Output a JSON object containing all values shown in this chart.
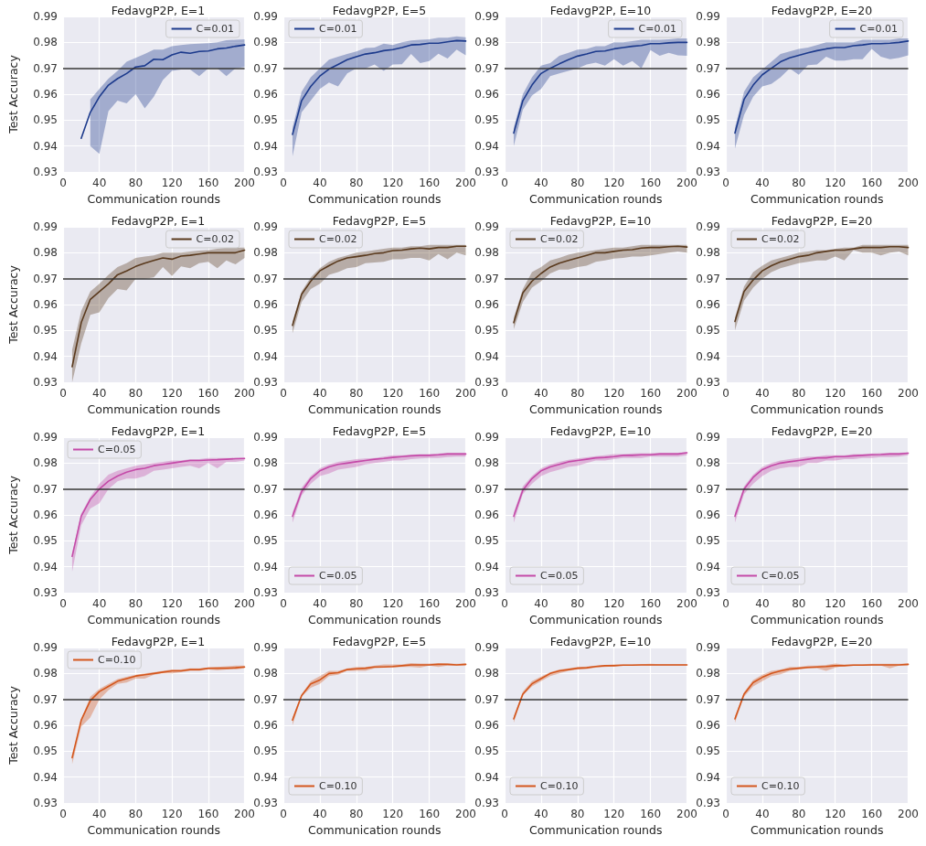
{
  "chart_data": [
    {
      "type": "line",
      "title": "FedavgP2P, E=1",
      "xlabel": "Communication rounds",
      "ylabel": "Test Accuracy",
      "legend": "top right",
      "grid": true,
      "xlim": [
        0,
        200
      ],
      "xticks": [
        0,
        40,
        80,
        120,
        160,
        200
      ],
      "ylim": [
        0.93,
        0.99
      ],
      "yticks": [
        0.93,
        0.94,
        0.95,
        0.96,
        0.97,
        0.98,
        0.99
      ],
      "ref_lines": [
        {
          "axis": "y",
          "value": 0.97,
          "color": "#333333"
        }
      ],
      "series": [
        {
          "name": "C=0.01",
          "color": "#1c3a8c",
          "x": [
            20,
            30,
            40,
            50,
            60,
            70,
            80,
            90,
            100,
            110,
            120,
            130,
            140,
            150,
            160,
            170,
            180,
            190,
            200
          ],
          "values": [
            0.943,
            0.953,
            0.959,
            0.9635,
            0.966,
            0.968,
            0.9705,
            0.971,
            0.9735,
            0.9733,
            0.9752,
            0.9762,
            0.9758,
            0.9765,
            0.9767,
            0.9775,
            0.9778,
            0.9785,
            0.979
          ],
          "upper": [
            null,
            0.958,
            0.962,
            0.966,
            0.969,
            0.9725,
            0.974,
            0.9755,
            0.9772,
            0.9772,
            0.9785,
            0.979,
            0.9793,
            0.9795,
            0.9797,
            0.98,
            0.9808,
            0.981,
            0.9812
          ],
          "lower": [
            null,
            0.94,
            0.937,
            0.9535,
            0.9575,
            0.9565,
            0.96,
            0.9545,
            0.959,
            0.9655,
            0.969,
            0.9695,
            0.9695,
            0.967,
            0.97,
            0.97,
            0.967,
            0.97,
            0.9705
          ]
        }
      ]
    },
    {
      "type": "line",
      "title": "FedavgP2P, E=5",
      "xlabel": "Communication rounds",
      "legend": "top left",
      "grid": true,
      "xlim": [
        0,
        200
      ],
      "xticks": [
        0,
        40,
        80,
        120,
        160,
        200
      ],
      "ylim": [
        0.93,
        0.99
      ],
      "yticks": [
        0.93,
        0.94,
        0.95,
        0.96,
        0.97,
        0.98,
        0.99
      ],
      "ref_lines": [
        {
          "axis": "y",
          "value": 0.97,
          "color": "#333333"
        }
      ],
      "x": [
        10,
        20,
        30,
        40,
        50,
        60,
        70,
        80,
        90,
        100,
        110,
        120,
        130,
        140,
        150,
        160,
        170,
        180,
        190,
        200
      ],
      "series": [
        {
          "name": "C=0.01",
          "color": "#1c3a8c",
          "values": [
            0.9445,
            0.9575,
            0.963,
            0.967,
            0.9697,
            0.9715,
            0.9733,
            0.9745,
            0.9755,
            0.976,
            0.9768,
            0.9772,
            0.978,
            0.979,
            0.9792,
            0.9797,
            0.9797,
            0.9802,
            0.9807,
            0.9805
          ],
          "upper": [
            0.947,
            0.961,
            0.9665,
            0.97,
            0.9733,
            0.9745,
            0.9755,
            0.9765,
            0.9778,
            0.978,
            0.9795,
            0.979,
            0.98,
            0.9807,
            0.981,
            0.9812,
            0.9818,
            0.9818,
            0.9823,
            0.982
          ],
          "lower": [
            0.936,
            0.953,
            0.9575,
            0.962,
            0.9645,
            0.963,
            0.968,
            0.97,
            0.97,
            0.9715,
            0.969,
            0.9715,
            0.9716,
            0.9755,
            0.972,
            0.9728,
            0.9756,
            0.9738,
            0.9772,
            0.975
          ]
        }
      ]
    },
    {
      "type": "line",
      "title": "FedavgP2P, E=10",
      "xlabel": "Communication rounds",
      "legend": "top right",
      "grid": true,
      "xlim": [
        0,
        200
      ],
      "xticks": [
        0,
        40,
        80,
        120,
        160,
        200
      ],
      "ylim": [
        0.93,
        0.99
      ],
      "yticks": [
        0.93,
        0.94,
        0.95,
        0.96,
        0.97,
        0.98,
        0.99
      ],
      "ref_lines": [
        {
          "axis": "y",
          "value": 0.97,
          "color": "#333333"
        }
      ],
      "x": [
        10,
        20,
        30,
        40,
        50,
        60,
        70,
        80,
        90,
        100,
        110,
        120,
        130,
        140,
        150,
        160,
        170,
        180,
        190,
        200
      ],
      "series": [
        {
          "name": "C=0.01",
          "color": "#1c3a8c",
          "values": [
            0.945,
            0.9575,
            0.9635,
            0.968,
            0.97,
            0.9717,
            0.9733,
            0.9747,
            0.9755,
            0.9765,
            0.9767,
            0.9775,
            0.978,
            0.9785,
            0.9788,
            0.9795,
            0.9795,
            0.9798,
            0.98,
            0.98
          ],
          "upper": [
            0.947,
            0.96,
            0.9665,
            0.971,
            0.972,
            0.9748,
            0.976,
            0.9772,
            0.9775,
            0.9785,
            0.9785,
            0.98,
            0.98,
            0.9805,
            0.981,
            0.981,
            0.981,
            0.9812,
            0.9815,
            0.9815
          ],
          "lower": [
            0.94,
            0.954,
            0.9595,
            0.962,
            0.967,
            0.968,
            0.969,
            0.97,
            0.9715,
            0.9722,
            0.971,
            0.9735,
            0.971,
            0.9728,
            0.97,
            0.977,
            0.9748,
            0.976,
            0.975,
            0.9748
          ]
        }
      ]
    },
    {
      "type": "line",
      "title": "FedavgP2P, E=20",
      "xlabel": "Communication rounds",
      "legend": "top right",
      "grid": true,
      "xlim": [
        0,
        200
      ],
      "xticks": [
        0,
        40,
        80,
        120,
        160,
        200
      ],
      "ylim": [
        0.93,
        0.99
      ],
      "yticks": [
        0.93,
        0.94,
        0.95,
        0.96,
        0.97,
        0.98,
        0.99
      ],
      "ref_lines": [
        {
          "axis": "y",
          "value": 0.97,
          "color": "#333333"
        }
      ],
      "x": [
        10,
        20,
        30,
        40,
        50,
        60,
        70,
        80,
        90,
        100,
        110,
        120,
        130,
        140,
        150,
        160,
        170,
        180,
        190,
        200
      ],
      "series": [
        {
          "name": "C=0.01",
          "color": "#1c3a8c",
          "values": [
            0.945,
            0.958,
            0.9635,
            0.9675,
            0.97,
            0.9725,
            0.974,
            0.975,
            0.976,
            0.9768,
            0.9775,
            0.978,
            0.978,
            0.9787,
            0.979,
            0.9795,
            0.9795,
            0.9797,
            0.98,
            0.9805
          ],
          "upper": [
            0.947,
            0.961,
            0.9665,
            0.9695,
            0.9725,
            0.9755,
            0.9765,
            0.9775,
            0.978,
            0.979,
            0.98,
            0.98,
            0.98,
            0.98,
            0.981,
            0.981,
            0.981,
            0.981,
            0.9815,
            0.9815
          ],
          "lower": [
            0.939,
            0.952,
            0.959,
            0.963,
            0.964,
            0.9665,
            0.97,
            0.9675,
            0.9712,
            0.9715,
            0.9745,
            0.973,
            0.973,
            0.9735,
            0.9735,
            0.9775,
            0.9745,
            0.9735,
            0.974,
            0.975
          ]
        }
      ]
    },
    {
      "type": "line",
      "title": "FedavgP2P, E=1",
      "xlabel": "Communication rounds",
      "ylabel": "Test Accuracy",
      "legend": "top right",
      "grid": true,
      "xlim": [
        0,
        200
      ],
      "xticks": [
        0,
        40,
        80,
        120,
        160,
        200
      ],
      "ylim": [
        0.93,
        0.99
      ],
      "yticks": [
        0.93,
        0.94,
        0.95,
        0.96,
        0.97,
        0.98,
        0.99
      ],
      "ref_lines": [
        {
          "axis": "y",
          "value": 0.97,
          "color": "#333333"
        }
      ],
      "x": [
        10,
        20,
        30,
        40,
        50,
        60,
        70,
        80,
        90,
        100,
        110,
        120,
        130,
        140,
        150,
        160,
        170,
        180,
        190,
        200
      ],
      "series": [
        {
          "name": "C=0.02",
          "color": "#5a3a1e",
          "values": [
            0.936,
            0.953,
            0.962,
            0.965,
            0.968,
            0.9715,
            0.973,
            0.9747,
            0.976,
            0.977,
            0.978,
            0.9775,
            0.9787,
            0.979,
            0.9795,
            0.98,
            0.98,
            0.98,
            0.98,
            0.981
          ],
          "upper": [
            0.9425,
            0.9575,
            0.965,
            0.968,
            0.9715,
            0.9745,
            0.976,
            0.978,
            0.9785,
            0.979,
            0.98,
            0.98,
            0.98,
            0.9805,
            0.9808,
            0.981,
            0.9815,
            0.982,
            0.982,
            0.982
          ],
          "lower": [
            0.93,
            0.945,
            0.956,
            0.957,
            0.9625,
            0.966,
            0.9655,
            0.97,
            0.97,
            0.9705,
            0.9745,
            0.971,
            0.9747,
            0.974,
            0.976,
            0.9765,
            0.974,
            0.977,
            0.9755,
            0.978
          ]
        }
      ]
    },
    {
      "type": "line",
      "title": "FedavgP2P, E=5",
      "xlabel": "Communication rounds",
      "legend": "top left",
      "grid": true,
      "xlim": [
        0,
        200
      ],
      "xticks": [
        0,
        40,
        80,
        120,
        160,
        200
      ],
      "ylim": [
        0.93,
        0.99
      ],
      "yticks": [
        0.93,
        0.94,
        0.95,
        0.96,
        0.97,
        0.98,
        0.99
      ],
      "ref_lines": [
        {
          "axis": "y",
          "value": 0.97,
          "color": "#333333"
        }
      ],
      "x": [
        10,
        20,
        30,
        40,
        50,
        60,
        70,
        80,
        90,
        100,
        110,
        120,
        130,
        140,
        150,
        160,
        170,
        180,
        190,
        200
      ],
      "series": [
        {
          "name": "C=0.02",
          "color": "#5a3a1e",
          "values": [
            0.952,
            0.964,
            0.969,
            0.973,
            0.975,
            0.9768,
            0.978,
            0.9785,
            0.979,
            0.9797,
            0.98,
            0.9808,
            0.981,
            0.9815,
            0.9818,
            0.9815,
            0.982,
            0.982,
            0.9825,
            0.9825
          ],
          "upper": [
            0.9535,
            0.965,
            0.9705,
            0.974,
            0.9765,
            0.978,
            0.979,
            0.98,
            0.9805,
            0.981,
            0.9815,
            0.982,
            0.982,
            0.9825,
            0.9825,
            0.983,
            0.983,
            0.983,
            0.983,
            0.983
          ],
          "lower": [
            0.949,
            0.961,
            0.966,
            0.968,
            0.9715,
            0.9725,
            0.974,
            0.9745,
            0.976,
            0.9762,
            0.9765,
            0.9775,
            0.9775,
            0.978,
            0.978,
            0.977,
            0.9795,
            0.9775,
            0.98,
            0.979
          ]
        }
      ]
    },
    {
      "type": "line",
      "title": "FedavgP2P, E=10",
      "xlabel": "Communication rounds",
      "legend": "top left",
      "grid": true,
      "xlim": [
        0,
        200
      ],
      "xticks": [
        0,
        40,
        80,
        120,
        160,
        200
      ],
      "ylim": [
        0.93,
        0.99
      ],
      "yticks": [
        0.93,
        0.94,
        0.95,
        0.96,
        0.97,
        0.98,
        0.99
      ],
      "ref_lines": [
        {
          "axis": "y",
          "value": 0.97,
          "color": "#333333"
        }
      ],
      "x": [
        10,
        20,
        30,
        40,
        50,
        60,
        70,
        80,
        90,
        100,
        110,
        120,
        130,
        140,
        150,
        160,
        170,
        180,
        190,
        200
      ],
      "series": [
        {
          "name": "C=0.02",
          "color": "#5a3a1e",
          "values": [
            0.953,
            0.9645,
            0.969,
            0.972,
            0.9745,
            0.976,
            0.977,
            0.978,
            0.979,
            0.98,
            0.98,
            0.9805,
            0.981,
            0.9812,
            0.9818,
            0.982,
            0.982,
            0.9823,
            0.9825,
            0.9822
          ],
          "upper": [
            0.955,
            0.966,
            0.9725,
            0.9745,
            0.977,
            0.978,
            0.9792,
            0.98,
            0.9805,
            0.981,
            0.9815,
            0.982,
            0.982,
            0.9825,
            0.983,
            0.983,
            0.983,
            0.983,
            0.983,
            0.983
          ],
          "lower": [
            0.9505,
            0.961,
            0.9665,
            0.969,
            0.972,
            0.9735,
            0.9735,
            0.9745,
            0.975,
            0.9765,
            0.977,
            0.9777,
            0.978,
            0.9785,
            0.9785,
            0.979,
            0.9795,
            0.98,
            0.9805,
            0.98
          ]
        }
      ]
    },
    {
      "type": "line",
      "title": "FedavgP2P, E=20",
      "xlabel": "Communication rounds",
      "legend": "top left",
      "grid": true,
      "xlim": [
        0,
        200
      ],
      "xticks": [
        0,
        40,
        80,
        120,
        160,
        200
      ],
      "ylim": [
        0.93,
        0.99
      ],
      "yticks": [
        0.93,
        0.94,
        0.95,
        0.96,
        0.97,
        0.98,
        0.99
      ],
      "ref_lines": [
        {
          "axis": "y",
          "value": 0.97,
          "color": "#333333"
        }
      ],
      "x": [
        10,
        20,
        30,
        40,
        50,
        60,
        70,
        80,
        90,
        100,
        110,
        120,
        130,
        140,
        150,
        160,
        170,
        180,
        190,
        200
      ],
      "series": [
        {
          "name": "C=0.02",
          "color": "#5a3a1e",
          "values": [
            0.9535,
            0.965,
            0.9695,
            0.973,
            0.975,
            0.9765,
            0.9775,
            0.9785,
            0.979,
            0.98,
            0.9805,
            0.981,
            0.981,
            0.9815,
            0.982,
            0.982,
            0.982,
            0.9823,
            0.9823,
            0.982
          ],
          "upper": [
            0.955,
            0.967,
            0.9725,
            0.975,
            0.977,
            0.978,
            0.979,
            0.98,
            0.9805,
            0.981,
            0.981,
            0.9815,
            0.982,
            0.982,
            0.983,
            0.983,
            0.983,
            0.983,
            0.983,
            0.983
          ],
          "lower": [
            0.95,
            0.9615,
            0.9665,
            0.97,
            0.9725,
            0.974,
            0.975,
            0.976,
            0.9765,
            0.977,
            0.977,
            0.9785,
            0.977,
            0.981,
            0.98,
            0.98,
            0.979,
            0.98,
            0.9805,
            0.979
          ]
        }
      ]
    },
    {
      "type": "line",
      "title": "FedavgP2P, E=1",
      "xlabel": "Communication rounds",
      "ylabel": "Test Accuracy",
      "legend": "top left",
      "grid": true,
      "xlim": [
        0,
        200
      ],
      "xticks": [
        0,
        40,
        80,
        120,
        160,
        200
      ],
      "ylim": [
        0.93,
        0.99
      ],
      "yticks": [
        0.93,
        0.94,
        0.95,
        0.96,
        0.97,
        0.98,
        0.99
      ],
      "ref_lines": [
        {
          "axis": "y",
          "value": 0.97,
          "color": "#333333"
        }
      ],
      "x": [
        10,
        20,
        30,
        40,
        50,
        60,
        70,
        80,
        90,
        100,
        110,
        120,
        130,
        140,
        150,
        160,
        170,
        180,
        190,
        200
      ],
      "series": [
        {
          "name": "C=0.05",
          "color": "#c44aa8",
          "values": [
            0.944,
            0.9595,
            0.966,
            0.97,
            0.973,
            0.975,
            0.9765,
            0.9775,
            0.978,
            0.979,
            0.9795,
            0.98,
            0.9805,
            0.981,
            0.981,
            0.9812,
            0.9813,
            0.9815,
            0.9817,
            0.9818
          ],
          "upper": [
            0.945,
            0.9605,
            0.967,
            0.972,
            0.9755,
            0.977,
            0.978,
            0.979,
            0.9795,
            0.98,
            0.9805,
            0.981,
            0.981,
            0.9815,
            0.9815,
            0.982,
            0.982,
            0.982,
            0.982,
            0.982
          ],
          "lower": [
            0.938,
            0.956,
            0.9625,
            0.9645,
            0.97,
            0.973,
            0.974,
            0.974,
            0.975,
            0.977,
            0.9775,
            0.978,
            0.9785,
            0.979,
            0.978,
            0.98,
            0.978,
            0.9805,
            0.9805,
            0.981
          ]
        }
      ]
    },
    {
      "type": "line",
      "title": "FedavgP2P, E=5",
      "xlabel": "Communication rounds",
      "legend": "bottom left",
      "grid": true,
      "xlim": [
        0,
        200
      ],
      "xticks": [
        0,
        40,
        80,
        120,
        160,
        200
      ],
      "ylim": [
        0.93,
        0.99
      ],
      "yticks": [
        0.93,
        0.94,
        0.95,
        0.96,
        0.97,
        0.98,
        0.99
      ],
      "ref_lines": [
        {
          "axis": "y",
          "value": 0.97,
          "color": "#333333"
        }
      ],
      "x": [
        10,
        20,
        30,
        40,
        50,
        60,
        70,
        80,
        90,
        100,
        110,
        120,
        130,
        140,
        150,
        160,
        170,
        180,
        190,
        200
      ],
      "series": [
        {
          "name": "C=0.05",
          "color": "#c44aa8",
          "values": [
            0.9595,
            0.969,
            0.974,
            0.977,
            0.9785,
            0.9795,
            0.98,
            0.9805,
            0.981,
            0.9815,
            0.9818,
            0.9822,
            0.9825,
            0.9828,
            0.983,
            0.983,
            0.9832,
            0.9835,
            0.9835,
            0.9835
          ],
          "upper": [
            0.961,
            0.9705,
            0.975,
            0.978,
            0.9795,
            0.9805,
            0.981,
            0.9815,
            0.9818,
            0.982,
            0.9825,
            0.983,
            0.983,
            0.9833,
            0.9835,
            0.9835,
            0.9837,
            0.984,
            0.984,
            0.984
          ],
          "lower": [
            0.957,
            0.9675,
            0.972,
            0.975,
            0.976,
            0.9775,
            0.978,
            0.9785,
            0.9795,
            0.98,
            0.9805,
            0.981,
            0.981,
            0.9815,
            0.9818,
            0.982,
            0.982,
            0.9823,
            0.9825,
            0.9825
          ]
        }
      ]
    },
    {
      "type": "line",
      "title": "FedavgP2P, E=10",
      "xlabel": "Communication rounds",
      "legend": "bottom left",
      "grid": true,
      "xlim": [
        0,
        200
      ],
      "xticks": [
        0,
        40,
        80,
        120,
        160,
        200
      ],
      "ylim": [
        0.93,
        0.99
      ],
      "yticks": [
        0.93,
        0.94,
        0.95,
        0.96,
        0.97,
        0.98,
        0.99
      ],
      "ref_lines": [
        {
          "axis": "y",
          "value": 0.97,
          "color": "#333333"
        }
      ],
      "x": [
        10,
        20,
        30,
        40,
        50,
        60,
        70,
        80,
        90,
        100,
        110,
        120,
        130,
        140,
        150,
        160,
        170,
        180,
        190,
        200
      ],
      "series": [
        {
          "name": "C=0.05",
          "color": "#c44aa8",
          "values": [
            0.9595,
            0.9695,
            0.974,
            0.977,
            0.9785,
            0.9795,
            0.9805,
            0.981,
            0.9815,
            0.982,
            0.9822,
            0.9825,
            0.983,
            0.983,
            0.9832,
            0.9832,
            0.9835,
            0.9835,
            0.9835,
            0.984
          ],
          "upper": [
            0.961,
            0.971,
            0.975,
            0.978,
            0.9795,
            0.9805,
            0.9813,
            0.9818,
            0.9822,
            0.9827,
            0.983,
            0.9835,
            0.9835,
            0.9837,
            0.9838,
            0.9838,
            0.984,
            0.984,
            0.984,
            0.9843
          ],
          "lower": [
            0.957,
            0.968,
            0.972,
            0.975,
            0.9765,
            0.9775,
            0.9785,
            0.979,
            0.98,
            0.981,
            0.981,
            0.9815,
            0.982,
            0.982,
            0.982,
            0.9825,
            0.9825,
            0.9825,
            0.9825,
            0.983
          ]
        }
      ]
    },
    {
      "type": "line",
      "title": "FedavgP2P, E=20",
      "xlabel": "Communication rounds",
      "legend": "bottom left",
      "grid": true,
      "xlim": [
        0,
        200
      ],
      "xticks": [
        0,
        40,
        80,
        120,
        160,
        200
      ],
      "ylim": [
        0.93,
        0.99
      ],
      "yticks": [
        0.93,
        0.94,
        0.95,
        0.96,
        0.97,
        0.98,
        0.99
      ],
      "ref_lines": [
        {
          "axis": "y",
          "value": 0.97,
          "color": "#333333"
        }
      ],
      "x": [
        10,
        20,
        30,
        40,
        50,
        60,
        70,
        80,
        90,
        100,
        110,
        120,
        130,
        140,
        150,
        160,
        170,
        180,
        190,
        200
      ],
      "series": [
        {
          "name": "C=0.05",
          "color": "#c44aa8",
          "values": [
            0.9595,
            0.97,
            0.9745,
            0.9775,
            0.979,
            0.98,
            0.9805,
            0.981,
            0.9815,
            0.982,
            0.982,
            0.9825,
            0.9825,
            0.9828,
            0.983,
            0.9832,
            0.9833,
            0.9835,
            0.9835,
            0.9838
          ],
          "upper": [
            0.961,
            0.971,
            0.9755,
            0.9785,
            0.98,
            0.981,
            0.9815,
            0.982,
            0.9825,
            0.9825,
            0.983,
            0.983,
            0.983,
            0.9835,
            0.9835,
            0.9837,
            0.9838,
            0.984,
            0.984,
            0.9842
          ],
          "lower": [
            0.957,
            0.968,
            0.972,
            0.975,
            0.977,
            0.978,
            0.9785,
            0.9785,
            0.98,
            0.98,
            0.981,
            0.981,
            0.9815,
            0.9815,
            0.982,
            0.982,
            0.9823,
            0.9823,
            0.9825,
            0.983
          ]
        }
      ]
    },
    {
      "type": "line",
      "title": "FedavgP2P, E=1",
      "xlabel": "Communication rounds",
      "ylabel": "Test Accuracy",
      "legend": "top left",
      "grid": true,
      "xlim": [
        0,
        200
      ],
      "xticks": [
        0,
        40,
        80,
        120,
        160,
        200
      ],
      "ylim": [
        0.93,
        0.99
      ],
      "yticks": [
        0.93,
        0.94,
        0.95,
        0.96,
        0.97,
        0.98,
        0.99
      ],
      "ref_lines": [
        {
          "axis": "y",
          "value": 0.97,
          "color": "#333333"
        }
      ],
      "x": [
        10,
        20,
        30,
        40,
        50,
        60,
        70,
        80,
        90,
        100,
        110,
        120,
        130,
        140,
        150,
        160,
        170,
        180,
        190,
        200
      ],
      "series": [
        {
          "name": "C=0.10",
          "color": "#d4561c",
          "values": [
            0.9475,
            0.962,
            0.9695,
            0.973,
            0.975,
            0.977,
            0.978,
            0.979,
            0.9795,
            0.98,
            0.9805,
            0.981,
            0.981,
            0.9815,
            0.9815,
            0.982,
            0.982,
            0.982,
            0.9822,
            0.9825
          ],
          "upper": [
            0.948,
            0.9625,
            0.971,
            0.974,
            0.976,
            0.9778,
            0.9787,
            0.9795,
            0.98,
            0.9805,
            0.981,
            0.9815,
            0.9815,
            0.982,
            0.982,
            0.9822,
            0.9825,
            0.9828,
            0.983,
            0.983
          ],
          "lower": [
            0.945,
            0.9595,
            0.963,
            0.97,
            0.9735,
            0.976,
            0.9765,
            0.978,
            0.978,
            0.9795,
            0.98,
            0.98,
            0.9805,
            0.981,
            0.981,
            0.9815,
            0.9812,
            0.9815,
            0.9815,
            0.982
          ]
        }
      ]
    },
    {
      "type": "line",
      "title": "FedavgP2P, E=5",
      "xlabel": "Communication rounds",
      "legend": "bottom left",
      "grid": true,
      "xlim": [
        0,
        200
      ],
      "xticks": [
        0,
        40,
        80,
        120,
        160,
        200
      ],
      "ylim": [
        0.93,
        0.99
      ],
      "yticks": [
        0.93,
        0.94,
        0.95,
        0.96,
        0.97,
        0.98,
        0.99
      ],
      "ref_lines": [
        {
          "axis": "y",
          "value": 0.97,
          "color": "#333333"
        }
      ],
      "x": [
        10,
        20,
        30,
        40,
        50,
        60,
        70,
        80,
        90,
        100,
        110,
        120,
        130,
        140,
        150,
        160,
        170,
        180,
        190,
        200
      ],
      "series": [
        {
          "name": "C=0.10",
          "color": "#d4561c",
          "values": [
            0.962,
            0.9715,
            0.976,
            0.9775,
            0.98,
            0.9803,
            0.9815,
            0.9818,
            0.982,
            0.9825,
            0.9825,
            0.9827,
            0.983,
            0.9833,
            0.9833,
            0.9833,
            0.9835,
            0.9835,
            0.9833,
            0.9835
          ],
          "upper": [
            0.963,
            0.972,
            0.977,
            0.979,
            0.981,
            0.981,
            0.982,
            0.9825,
            0.9825,
            0.983,
            0.9835,
            0.9835,
            0.9835,
            0.984,
            0.9838,
            0.9838,
            0.984,
            0.9838,
            0.9837,
            0.9838
          ],
          "lower": [
            0.96,
            0.971,
            0.9745,
            0.976,
            0.979,
            0.9795,
            0.981,
            0.981,
            0.981,
            0.982,
            0.9822,
            0.9822,
            0.9825,
            0.9825,
            0.9822,
            0.983,
            0.9825,
            0.983,
            0.983,
            0.983
          ]
        }
      ]
    },
    {
      "type": "line",
      "title": "FedavgP2P, E=10",
      "xlabel": "Communication rounds",
      "legend": "bottom left",
      "grid": true,
      "xlim": [
        0,
        200
      ],
      "xticks": [
        0,
        40,
        80,
        120,
        160,
        200
      ],
      "ylim": [
        0.93,
        0.99
      ],
      "yticks": [
        0.93,
        0.94,
        0.95,
        0.96,
        0.97,
        0.98,
        0.99
      ],
      "ref_lines": [
        {
          "axis": "y",
          "value": 0.97,
          "color": "#333333"
        }
      ],
      "x": [
        10,
        20,
        30,
        40,
        50,
        60,
        70,
        80,
        90,
        100,
        110,
        120,
        130,
        140,
        150,
        160,
        170,
        180,
        190,
        200
      ],
      "series": [
        {
          "name": "C=0.10",
          "color": "#d4561c",
          "values": [
            0.9625,
            0.972,
            0.976,
            0.978,
            0.98,
            0.981,
            0.9815,
            0.982,
            0.9822,
            0.9827,
            0.983,
            0.983,
            0.9832,
            0.9832,
            0.9833,
            0.9833,
            0.9833,
            0.9833,
            0.9833,
            0.9833
          ],
          "upper": [
            0.9635,
            0.973,
            0.977,
            0.9788,
            0.9805,
            0.9815,
            0.982,
            0.9825,
            0.9827,
            0.983,
            0.9833,
            0.9835,
            0.9835,
            0.9835,
            0.9836,
            0.9837,
            0.9836,
            0.9836,
            0.9836,
            0.9836
          ],
          "lower": [
            0.961,
            0.9715,
            0.975,
            0.977,
            0.979,
            0.98,
            0.981,
            0.9815,
            0.9817,
            0.9822,
            0.9825,
            0.9828,
            0.983,
            0.983,
            0.983,
            0.983,
            0.983,
            0.983,
            0.983,
            0.983
          ]
        }
      ]
    },
    {
      "type": "line",
      "title": "FedavgP2P, E=20",
      "xlabel": "Communication rounds",
      "legend": "bottom left",
      "grid": true,
      "xlim": [
        0,
        200
      ],
      "xticks": [
        0,
        40,
        80,
        120,
        160,
        200
      ],
      "ylim": [
        0.93,
        0.99
      ],
      "yticks": [
        0.93,
        0.94,
        0.95,
        0.96,
        0.97,
        0.98,
        0.99
      ],
      "ref_lines": [
        {
          "axis": "y",
          "value": 0.97,
          "color": "#333333"
        }
      ],
      "x": [
        10,
        20,
        30,
        40,
        50,
        60,
        70,
        80,
        90,
        100,
        110,
        120,
        130,
        140,
        150,
        160,
        170,
        180,
        190,
        200
      ],
      "series": [
        {
          "name": "C=0.10",
          "color": "#d4561c",
          "values": [
            0.9625,
            0.972,
            0.9765,
            0.9785,
            0.98,
            0.981,
            0.9817,
            0.982,
            0.9823,
            0.9825,
            0.9827,
            0.983,
            0.983,
            0.9832,
            0.9832,
            0.9833,
            0.9833,
            0.9833,
            0.9833,
            0.9835
          ],
          "upper": [
            0.9635,
            0.9728,
            0.9775,
            0.9795,
            0.981,
            0.9815,
            0.9825,
            0.9825,
            0.983,
            0.983,
            0.9833,
            0.9838,
            0.9835,
            0.9836,
            0.9836,
            0.9837,
            0.9837,
            0.9837,
            0.9837,
            0.9838
          ],
          "lower": [
            0.961,
            0.971,
            0.975,
            0.977,
            0.979,
            0.9797,
            0.981,
            0.9815,
            0.982,
            0.982,
            0.981,
            0.9822,
            0.983,
            0.983,
            0.983,
            0.983,
            0.983,
            0.982,
            0.983,
            0.983
          ]
        }
      ]
    }
  ]
}
